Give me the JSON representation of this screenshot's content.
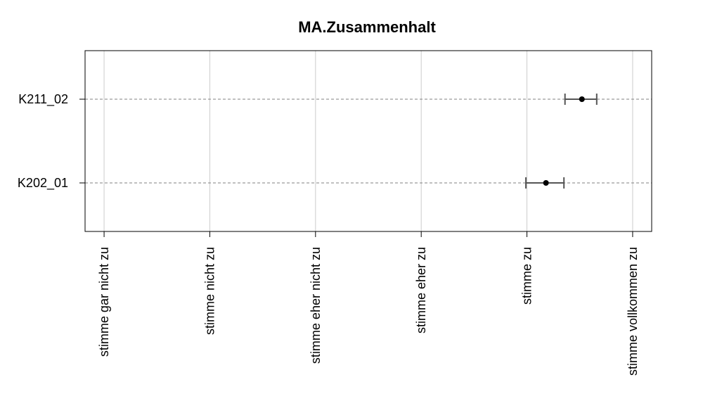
{
  "chart_data": {
    "type": "scatter",
    "title": "MA.Zusammenhalt",
    "xlabel": "",
    "ylabel": "",
    "x_scale": [
      1,
      6
    ],
    "xlim": [
      0.82,
      6.18
    ],
    "x_ticks": [
      {
        "value": 1,
        "label": "stimme gar nicht zu"
      },
      {
        "value": 2,
        "label": "stimme nicht zu"
      },
      {
        "value": 3,
        "label": "stimme eher nicht zu"
      },
      {
        "value": 4,
        "label": "stimme eher zu"
      },
      {
        "value": 5,
        "label": "stimme zu"
      },
      {
        "value": 6,
        "label": "stimme vollkommen zu"
      }
    ],
    "grid": true,
    "categories": [
      "K211_02",
      "K202_01"
    ],
    "points": [
      {
        "label": "K211_02",
        "mean": 5.52,
        "lower": 5.36,
        "upper": 5.66
      },
      {
        "label": "K202_01",
        "mean": 5.18,
        "lower": 4.99,
        "upper": 5.35
      }
    ]
  },
  "colors": {
    "gridline": "#cccccc",
    "dashed_line": "#808080",
    "errorbar": "#555555",
    "point": "#000000",
    "frame": "#000000"
  }
}
